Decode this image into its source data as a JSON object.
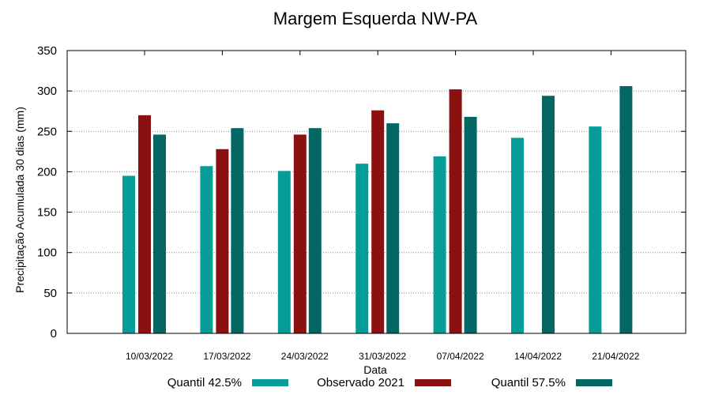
{
  "chart_data": {
    "type": "bar",
    "title": "Margem Esquerda NW-PA",
    "xlabel": "Data",
    "ylabel": "Precipitação Acumulada 30 dias (mm)",
    "ylim": [
      0,
      350
    ],
    "yticks": [
      0,
      50,
      100,
      150,
      200,
      250,
      300,
      350
    ],
    "grid": true,
    "legend_position": "bottom",
    "categories": [
      "10/03/2022",
      "17/03/2022",
      "24/03/2022",
      "31/03/2022",
      "07/04/2022",
      "14/04/2022",
      "21/04/2022"
    ],
    "series": [
      {
        "name": "Quantil 42.5%",
        "color": "#069c98",
        "values": [
          195,
          207,
          201,
          210,
          219,
          242,
          256
        ]
      },
      {
        "name": "Observado 2021",
        "color": "#8b1010",
        "values": [
          270,
          228,
          246,
          276,
          302,
          null,
          null
        ]
      },
      {
        "name": "Quantil 57.5%",
        "color": "#046764",
        "values": [
          246,
          254,
          254,
          260,
          268,
          294,
          306
        ]
      }
    ]
  }
}
